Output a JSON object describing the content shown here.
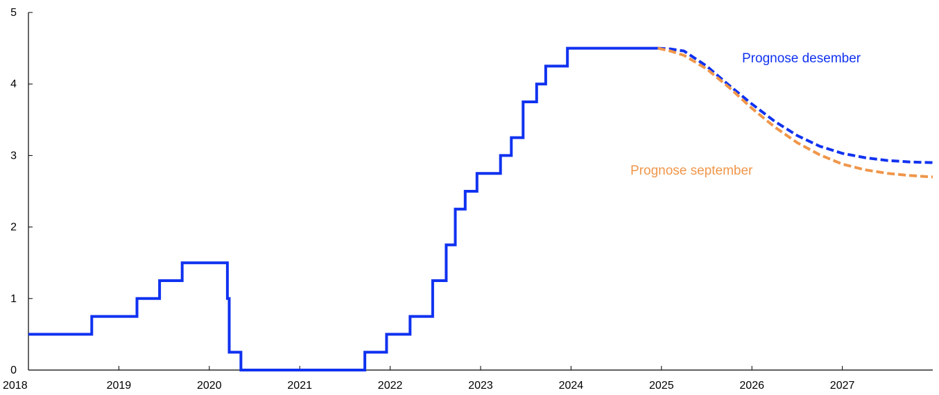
{
  "chart_data": {
    "type": "line",
    "title": "",
    "xlabel": "",
    "ylabel": "",
    "xlim": [
      2018.0,
      2028.0
    ],
    "ylim": [
      0,
      5
    ],
    "x_ticks": [
      "2018",
      "2019",
      "2020",
      "2021",
      "2022",
      "2023",
      "2024",
      "2025",
      "2026",
      "2027"
    ],
    "y_ticks": [
      "0",
      "1",
      "2",
      "3",
      "4",
      "5"
    ],
    "grid": false,
    "series": [
      {
        "name": "",
        "style": "solid-step",
        "color": "#1032f0",
        "points": [
          [
            2018.0,
            0.5
          ],
          [
            2018.7,
            0.5
          ],
          [
            2018.7,
            0.75
          ],
          [
            2019.2,
            0.75
          ],
          [
            2019.2,
            1.0
          ],
          [
            2019.45,
            1.0
          ],
          [
            2019.45,
            1.25
          ],
          [
            2019.7,
            1.25
          ],
          [
            2019.7,
            1.5
          ],
          [
            2020.2,
            1.5
          ],
          [
            2020.2,
            1.0
          ],
          [
            2020.22,
            1.0
          ],
          [
            2020.22,
            0.25
          ],
          [
            2020.35,
            0.25
          ],
          [
            2020.35,
            0.0
          ],
          [
            2021.72,
            0.0
          ],
          [
            2021.72,
            0.25
          ],
          [
            2021.96,
            0.25
          ],
          [
            2021.96,
            0.5
          ],
          [
            2022.22,
            0.5
          ],
          [
            2022.22,
            0.75
          ],
          [
            2022.47,
            0.75
          ],
          [
            2022.47,
            1.25
          ],
          [
            2022.62,
            1.25
          ],
          [
            2022.62,
            1.75
          ],
          [
            2022.72,
            1.75
          ],
          [
            2022.72,
            2.25
          ],
          [
            2022.83,
            2.25
          ],
          [
            2022.83,
            2.5
          ],
          [
            2022.96,
            2.5
          ],
          [
            2022.96,
            2.75
          ],
          [
            2023.22,
            2.75
          ],
          [
            2023.22,
            3.0
          ],
          [
            2023.34,
            3.0
          ],
          [
            2023.34,
            3.25
          ],
          [
            2023.47,
            3.25
          ],
          [
            2023.47,
            3.75
          ],
          [
            2023.62,
            3.75
          ],
          [
            2023.62,
            4.0
          ],
          [
            2023.72,
            4.0
          ],
          [
            2023.72,
            4.25
          ],
          [
            2023.96,
            4.25
          ],
          [
            2023.96,
            4.5
          ],
          [
            2024.96,
            4.5
          ]
        ]
      },
      {
        "name": "Prognose desember",
        "style": "dashed",
        "color": "#1032f0",
        "points": [
          [
            2024.96,
            4.5
          ],
          [
            2025.1,
            4.49
          ],
          [
            2025.25,
            4.46
          ],
          [
            2025.5,
            4.25
          ],
          [
            2025.75,
            3.98
          ],
          [
            2026.0,
            3.72
          ],
          [
            2026.25,
            3.48
          ],
          [
            2026.5,
            3.28
          ],
          [
            2026.75,
            3.13
          ],
          [
            2027.0,
            3.03
          ],
          [
            2027.25,
            2.97
          ],
          [
            2027.5,
            2.93
          ],
          [
            2027.75,
            2.91
          ],
          [
            2028.0,
            2.9
          ]
        ]
      },
      {
        "name": "Prognose september",
        "style": "dashed",
        "color": "#f0964a",
        "points": [
          [
            2024.96,
            4.5
          ],
          [
            2025.1,
            4.46
          ],
          [
            2025.25,
            4.4
          ],
          [
            2025.5,
            4.21
          ],
          [
            2025.75,
            3.95
          ],
          [
            2026.0,
            3.66
          ],
          [
            2026.25,
            3.4
          ],
          [
            2026.5,
            3.18
          ],
          [
            2026.75,
            3.01
          ],
          [
            2027.0,
            2.88
          ],
          [
            2027.25,
            2.8
          ],
          [
            2027.5,
            2.75
          ],
          [
            2027.75,
            2.72
          ],
          [
            2028.0,
            2.7
          ]
        ]
      }
    ]
  }
}
